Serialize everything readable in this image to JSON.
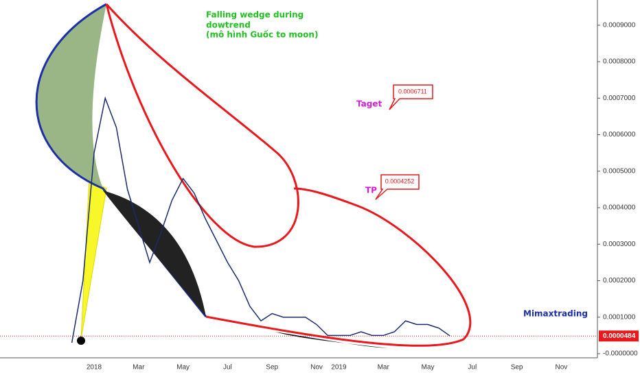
{
  "chart_data": {
    "type": "line",
    "color": "#1a2a6c",
    "categories": [
      null,
      null,
      "2018",
      null,
      null,
      null,
      "Mar",
      null,
      null,
      null,
      "May",
      null,
      null,
      null,
      "Jul",
      null,
      null,
      null,
      "Sep",
      null,
      null,
      null,
      "Nov",
      null,
      "2019",
      null,
      null,
      null,
      "Mar",
      null,
      null,
      null,
      "May",
      null,
      null,
      null,
      "Jul",
      null,
      null,
      null,
      "Sep",
      null,
      null,
      null,
      "Nov",
      null
    ],
    "values": [
      3e-05,
      0.0002,
      0.00055,
      0.0007,
      0.00062,
      0.00045,
      0.00035,
      0.00025,
      0.00033,
      0.00042,
      0.00048,
      0.00044,
      0.00037,
      0.00031,
      0.00025,
      0.0002,
      0.00013,
      9e-05,
      0.00011,
      0.0001,
      0.0001,
      0.0001,
      8e-05,
      5e-05,
      5e-05,
      5e-05,
      6e-05,
      5e-05,
      5e-05,
      6e-05,
      9e-05,
      8e-05,
      8e-05,
      7e-05,
      4.84e-05,
      null,
      null,
      null,
      null,
      null,
      null,
      null,
      null,
      null,
      null,
      null
    ],
    "ylim": [
      -1.13e-05,
      0.000969
    ],
    "yticks": [
      {
        "value": 0,
        "label": "-0.0000000"
      },
      {
        "value": 0.0001,
        "label": "0.0001000"
      },
      {
        "value": 0.0002,
        "label": "0.0002000"
      },
      {
        "value": 0.0003,
        "label": "0.0003000"
      },
      {
        "value": 0.0004,
        "label": "0.0004000"
      },
      {
        "value": 0.0005,
        "label": "0.0005000"
      },
      {
        "value": 0.0006,
        "label": "0.0006000"
      },
      {
        "value": 0.0007,
        "label": "0.0007000"
      },
      {
        "value": 0.0008,
        "label": "0.0008000"
      },
      {
        "value": 0.0009,
        "label": "0.0009000"
      }
    ],
    "grid": false,
    "last_price": 4.84e-05,
    "annotations": {
      "pattern": [
        "Falling wedge during",
        "dowtrend",
        "(mô hình Guốc to moon)"
      ],
      "target_label": "Taget",
      "target_price": "0.0006711",
      "tp_label": "TP",
      "tp_price": "0.0004252",
      "author": "Mimaxtrading"
    }
  }
}
